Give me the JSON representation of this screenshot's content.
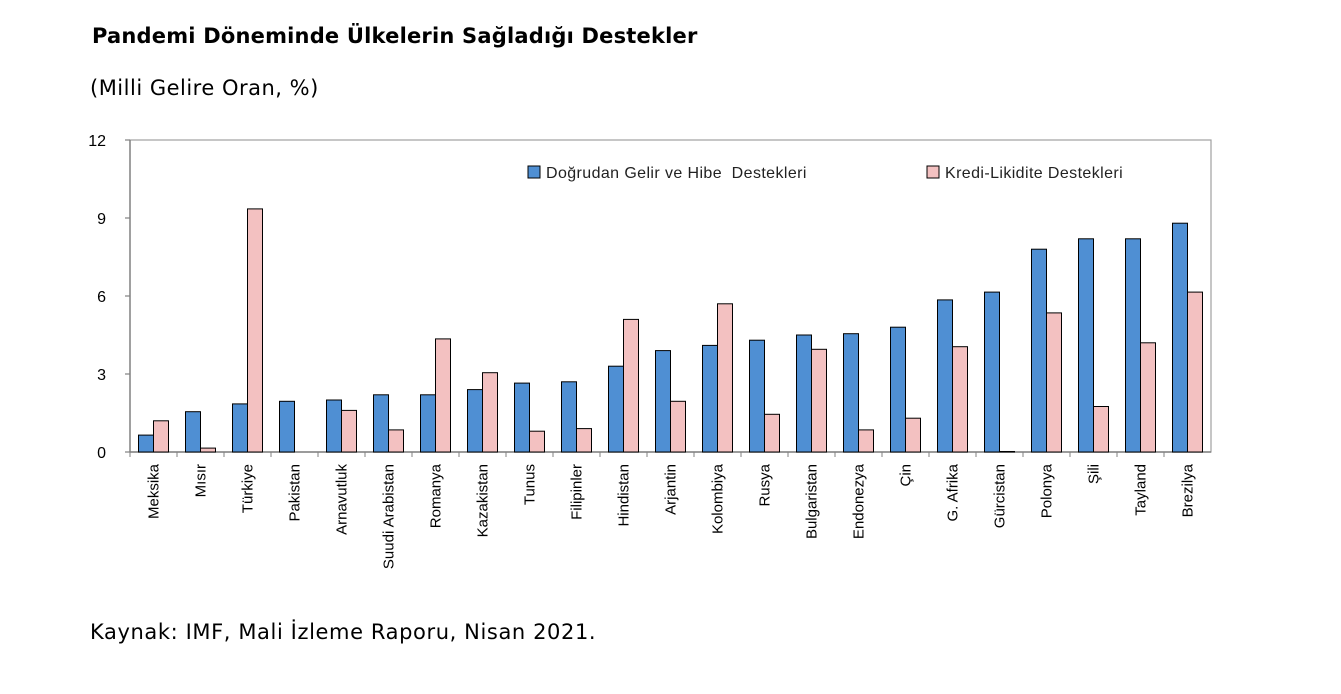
{
  "title": "Pandemi Döneminde Ülkelerin Sağladığı Destekler",
  "subtitle": "(Milli Gelire Oran, %)",
  "source": "Kaynak: IMF, Mali İzleme Raporu, Nisan 2021.",
  "colors": {
    "series1": "#4f8fd3",
    "series2": "#f3c1c1",
    "bar_stroke": "#000000",
    "axis": "#808080"
  },
  "chart_data": {
    "type": "bar",
    "title": "Pandemi Döneminde Ülkelerin Sağladığı Destekler",
    "subtitle": "(Milli Gelire Oran, %)",
    "xlabel": "",
    "ylabel": "",
    "ylim": [
      0,
      12
    ],
    "yticks": [
      0,
      3,
      6,
      9,
      12
    ],
    "grid": false,
    "legend_position": "top-right",
    "categories": [
      "Meksika",
      "Mısır",
      "Türkiye",
      "Pakistan",
      "Arnavutluk",
      "Suudi Arabistan",
      "Romanya",
      "Kazakistan",
      "Tunus",
      "Filipinler",
      "Hindistan",
      "Arjantin",
      "Kolombiya",
      "Rusya",
      "Bulgaristan",
      "Endonezya",
      "Çin",
      "G. Afrika",
      "Gürcistan",
      "Polonya",
      "Şili",
      "Tayland",
      "Brezilya"
    ],
    "series": [
      {
        "name": "Doğrudan Gelir ve Hibe  Destekleri",
        "values": [
          0.65,
          1.55,
          1.85,
          1.95,
          2.0,
          2.2,
          2.2,
          2.4,
          2.65,
          2.7,
          3.3,
          3.9,
          4.1,
          4.3,
          4.5,
          4.55,
          4.8,
          5.85,
          6.15,
          7.8,
          8.2,
          8.2,
          8.8
        ]
      },
      {
        "name": "Kredi-Likidite Destekleri",
        "values": [
          1.2,
          0.15,
          9.35,
          0,
          1.6,
          0.85,
          4.35,
          3.05,
          0.8,
          0.9,
          5.1,
          1.95,
          5.7,
          1.45,
          3.95,
          0.85,
          1.3,
          4.05,
          0.02,
          5.35,
          1.75,
          4.2,
          6.15
        ]
      }
    ]
  }
}
